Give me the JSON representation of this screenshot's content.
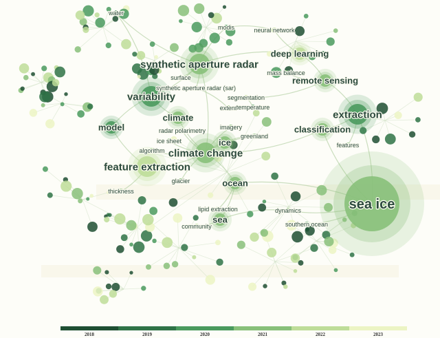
{
  "palette": {
    "2018": "#1f4f33",
    "2019": "#2f7347",
    "2020": "#4a9a5e",
    "2021": "#88c07a",
    "2022": "#bedd99",
    "2023": "#ecf4c4"
  },
  "nodes": [
    {
      "id": "water",
      "label": "water",
      "year": "2019",
      "size": "s",
      "label_size": "s"
    },
    {
      "id": "modis",
      "label": "modis",
      "year": "2020",
      "size": "s",
      "label_size": "s"
    },
    {
      "id": "neural-network",
      "label": "neural network",
      "year": "2022",
      "size": "s",
      "label_size": "s"
    },
    {
      "id": "synthetic-aperture-radar",
      "label": "synthetic aperture radar",
      "year": "2021",
      "size": "l",
      "label_size": "l"
    },
    {
      "id": "deep-learning",
      "label": "deep learning",
      "year": "2022",
      "size": "m",
      "label_size": "m"
    },
    {
      "id": "mass-balance",
      "label": "mass balance",
      "year": "2021",
      "size": "s",
      "label_size": "s"
    },
    {
      "id": "surface",
      "label": "surface",
      "year": "2021",
      "size": "s",
      "label_size": "s"
    },
    {
      "id": "remote-sensing",
      "label": "remote sensing",
      "year": "2021",
      "size": "m",
      "label_size": "m"
    },
    {
      "id": "variability",
      "label": "variability",
      "year": "2020",
      "size": "l",
      "label_size": "l"
    },
    {
      "id": "sar",
      "label": "synthetic aperture radar (sar)",
      "year": "2021",
      "size": "s",
      "label_size": "s"
    },
    {
      "id": "segmentation",
      "label": "segmentation",
      "year": "2022",
      "size": "s",
      "label_size": "s"
    },
    {
      "id": "extent",
      "label": "extent",
      "year": "2021",
      "size": "s",
      "label_size": "s"
    },
    {
      "id": "temperature",
      "label": "temperature",
      "year": "2020",
      "size": "s",
      "label_size": "s"
    },
    {
      "id": "extraction",
      "label": "extraction",
      "year": "2020",
      "size": "l",
      "label_size": "l"
    },
    {
      "id": "climate",
      "label": "climate",
      "year": "2021",
      "size": "m",
      "label_size": "m"
    },
    {
      "id": "model",
      "label": "model",
      "year": "2020",
      "size": "m",
      "label_size": "m"
    },
    {
      "id": "imagery",
      "label": "imagery",
      "year": "2021",
      "size": "s",
      "label_size": "s"
    },
    {
      "id": "classification",
      "label": "classification",
      "year": "2021",
      "size": "m",
      "label_size": "m"
    },
    {
      "id": "radar-polarimetry",
      "label": "radar polarimetry",
      "year": "2021",
      "size": "s",
      "label_size": "s"
    },
    {
      "id": "ice-sheet",
      "label": "ice sheet",
      "year": "2021",
      "size": "s",
      "label_size": "s"
    },
    {
      "id": "ice",
      "label": "ice",
      "year": "2021",
      "size": "m",
      "label_size": "m"
    },
    {
      "id": "greenland",
      "label": "greenland",
      "year": "2021",
      "size": "s",
      "label_size": "s"
    },
    {
      "id": "algorithm",
      "label": "algorithm",
      "year": "2021",
      "size": "s",
      "label_size": "s"
    },
    {
      "id": "climate-change",
      "label": "climate change",
      "year": "2021",
      "size": "l",
      "label_size": "l"
    },
    {
      "id": "features",
      "label": "features",
      "year": "2021",
      "size": "s",
      "label_size": "s"
    },
    {
      "id": "feature-extraction",
      "label": "feature extraction",
      "year": "2022",
      "size": "l",
      "label_size": "l"
    },
    {
      "id": "glacier",
      "label": "glacier",
      "year": "2021",
      "size": "s",
      "label_size": "s"
    },
    {
      "id": "ocean",
      "label": "ocean",
      "year": "2021",
      "size": "m",
      "label_size": "m"
    },
    {
      "id": "thickness",
      "label": "thickness",
      "year": "2021",
      "size": "s",
      "label_size": "s"
    },
    {
      "id": "sea-ice",
      "label": "sea ice",
      "year": "2021",
      "size": "xl",
      "label_size": "xl"
    },
    {
      "id": "lipid-extraction",
      "label": "lipid extraction",
      "year": "2022",
      "size": "s",
      "label_size": "s"
    },
    {
      "id": "dynamics",
      "label": "dynamics",
      "year": "2021",
      "size": "s",
      "label_size": "s"
    },
    {
      "id": "sea",
      "label": "sea",
      "year": "2021",
      "size": "m",
      "label_size": "m"
    },
    {
      "id": "community",
      "label": "community",
      "year": "2022",
      "size": "s",
      "label_size": "s"
    },
    {
      "id": "southern-ocean",
      "label": "southern ocean",
      "year": "2020",
      "size": "s",
      "label_size": "s"
    }
  ],
  "links": [
    [
      "synthetic-aperture-radar",
      "variability"
    ],
    [
      "synthetic-aperture-radar",
      "surface"
    ],
    [
      "synthetic-aperture-radar",
      "sar"
    ],
    [
      "synthetic-aperture-radar",
      "climate-change"
    ],
    [
      "synthetic-aperture-radar",
      "water"
    ],
    [
      "synthetic-aperture-radar",
      "modis"
    ],
    [
      "synthetic-aperture-radar",
      "deep-learning"
    ],
    [
      "deep-learning",
      "neural-network"
    ],
    [
      "deep-learning",
      "remote-sensing"
    ],
    [
      "remote-sensing",
      "mass-balance"
    ],
    [
      "remote-sensing",
      "extraction"
    ],
    [
      "remote-sensing",
      "segmentation"
    ],
    [
      "extraction",
      "classification"
    ],
    [
      "extraction",
      "features"
    ],
    [
      "extraction",
      "sea-ice"
    ],
    [
      "classification",
      "climate-change"
    ],
    [
      "climate-change",
      "climate"
    ],
    [
      "climate-change",
      "ice"
    ],
    [
      "climate-change",
      "imagery"
    ],
    [
      "climate-change",
      "greenland"
    ],
    [
      "climate-change",
      "feature-extraction"
    ],
    [
      "climate-change",
      "ocean"
    ],
    [
      "climate-change",
      "ice-sheet"
    ],
    [
      "climate-change",
      "radar-polarimetry"
    ],
    [
      "climate-change",
      "algorithm"
    ],
    [
      "feature-extraction",
      "model"
    ],
    [
      "feature-extraction",
      "thickness"
    ],
    [
      "model",
      "variability"
    ],
    [
      "climate",
      "variability"
    ],
    [
      "ocean",
      "sea"
    ],
    [
      "ocean",
      "sea-ice"
    ],
    [
      "ocean",
      "lipid-extraction"
    ],
    [
      "sea",
      "community"
    ],
    [
      "sea",
      "dynamics"
    ],
    [
      "sea-ice",
      "dynamics"
    ],
    [
      "sea-ice",
      "southern-ocean"
    ],
    [
      "sea-ice",
      "classification"
    ],
    [
      "glacier",
      "climate-change"
    ],
    [
      "ice",
      "greenland"
    ],
    [
      "extent",
      "temperature"
    ],
    [
      "sar",
      "extent"
    ],
    [
      "water",
      "variability"
    ],
    [
      "modis",
      "neural-network"
    ],
    [
      "segmentation",
      "temperature"
    ]
  ],
  "legend": {
    "years": [
      "2018",
      "2019",
      "2020",
      "2021",
      "2022",
      "2023"
    ]
  }
}
